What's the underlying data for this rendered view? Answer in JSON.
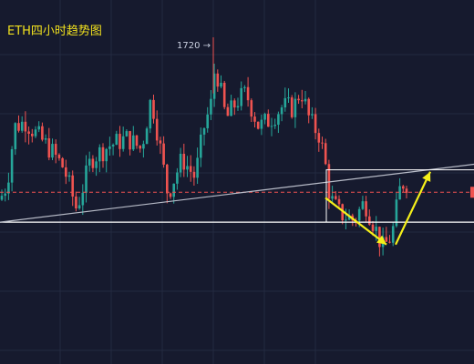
{
  "title": "ETH四小时趋势图",
  "peak_annotation": "1720 →",
  "colors": {
    "background": "#161a2e",
    "grid": "#232a40",
    "up": "#26a69a",
    "down": "#ef5350",
    "title": "#f0e01e",
    "support_line": "#ffffff",
    "trend_line": "#b8bcc8",
    "current_price_line": "#ef5350",
    "arrow": "#f5f01a",
    "box": "#ffffff"
  },
  "chart_data": {
    "type": "candlestick",
    "interval": "4h",
    "title": "ETH四小时趋势图",
    "y_range": [
      1545,
      1740
    ],
    "annotations": [
      {
        "type": "text",
        "text": "1720 →",
        "at_value": 1720
      },
      {
        "type": "horizontal_line",
        "value": 1621,
        "style": "solid",
        "color": "white"
      },
      {
        "type": "horizontal_line",
        "value": 1637,
        "style": "dashed",
        "color": "red"
      },
      {
        "type": "trendline",
        "from_value": 1621,
        "to_value": 1650,
        "color": "gray"
      },
      {
        "type": "rectangle",
        "value_top": 1649,
        "value_bottom": 1621,
        "color": "white"
      },
      {
        "type": "arrow",
        "direction": "down",
        "from_value": 1634,
        "to_value": 1609,
        "color": "yellow"
      },
      {
        "type": "arrow",
        "direction": "up",
        "from_value": 1609,
        "to_value": 1648,
        "color": "yellow"
      }
    ]
  }
}
